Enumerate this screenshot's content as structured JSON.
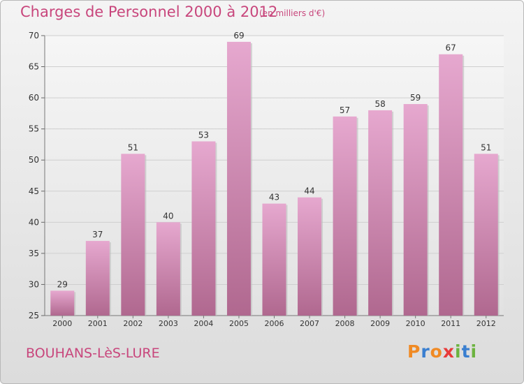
{
  "title": "Charges de Personnel 2000 à 2012",
  "subtitle": "(en milliers d'€)",
  "town": "BOUHANS-LèS-LURE",
  "logo": {
    "text": "Proxiti",
    "letters": [
      {
        "char": "P",
        "color": "#f08a24"
      },
      {
        "char": "r",
        "color": "#3a7fd0"
      },
      {
        "char": "o",
        "color": "#f08a24"
      },
      {
        "char": "x",
        "color": "#e83a3a"
      },
      {
        "char": "i",
        "color": "#6cb33f"
      },
      {
        "char": "t",
        "color": "#3a7fd0"
      },
      {
        "char": "i",
        "color": "#6cb33f"
      }
    ]
  },
  "colors": {
    "accent": "#c8467c",
    "bar_top": "#e6a8cf",
    "bar_bottom": "#b0688f",
    "axis_text": "#333333",
    "grid": "#cfcfcf"
  },
  "chart_data": {
    "type": "bar",
    "categories": [
      "2000",
      "2001",
      "2002",
      "2003",
      "2004",
      "2005",
      "2006",
      "2007",
      "2008",
      "2009",
      "2010",
      "2011",
      "2012"
    ],
    "values": [
      29,
      37,
      51,
      40,
      53,
      69,
      43,
      44,
      57,
      58,
      59,
      67,
      51
    ],
    "ylim": [
      25,
      70
    ],
    "yticks": [
      25,
      30,
      35,
      40,
      45,
      50,
      55,
      60,
      65,
      70
    ],
    "xlabel": "",
    "ylabel": "",
    "grid": true
  }
}
